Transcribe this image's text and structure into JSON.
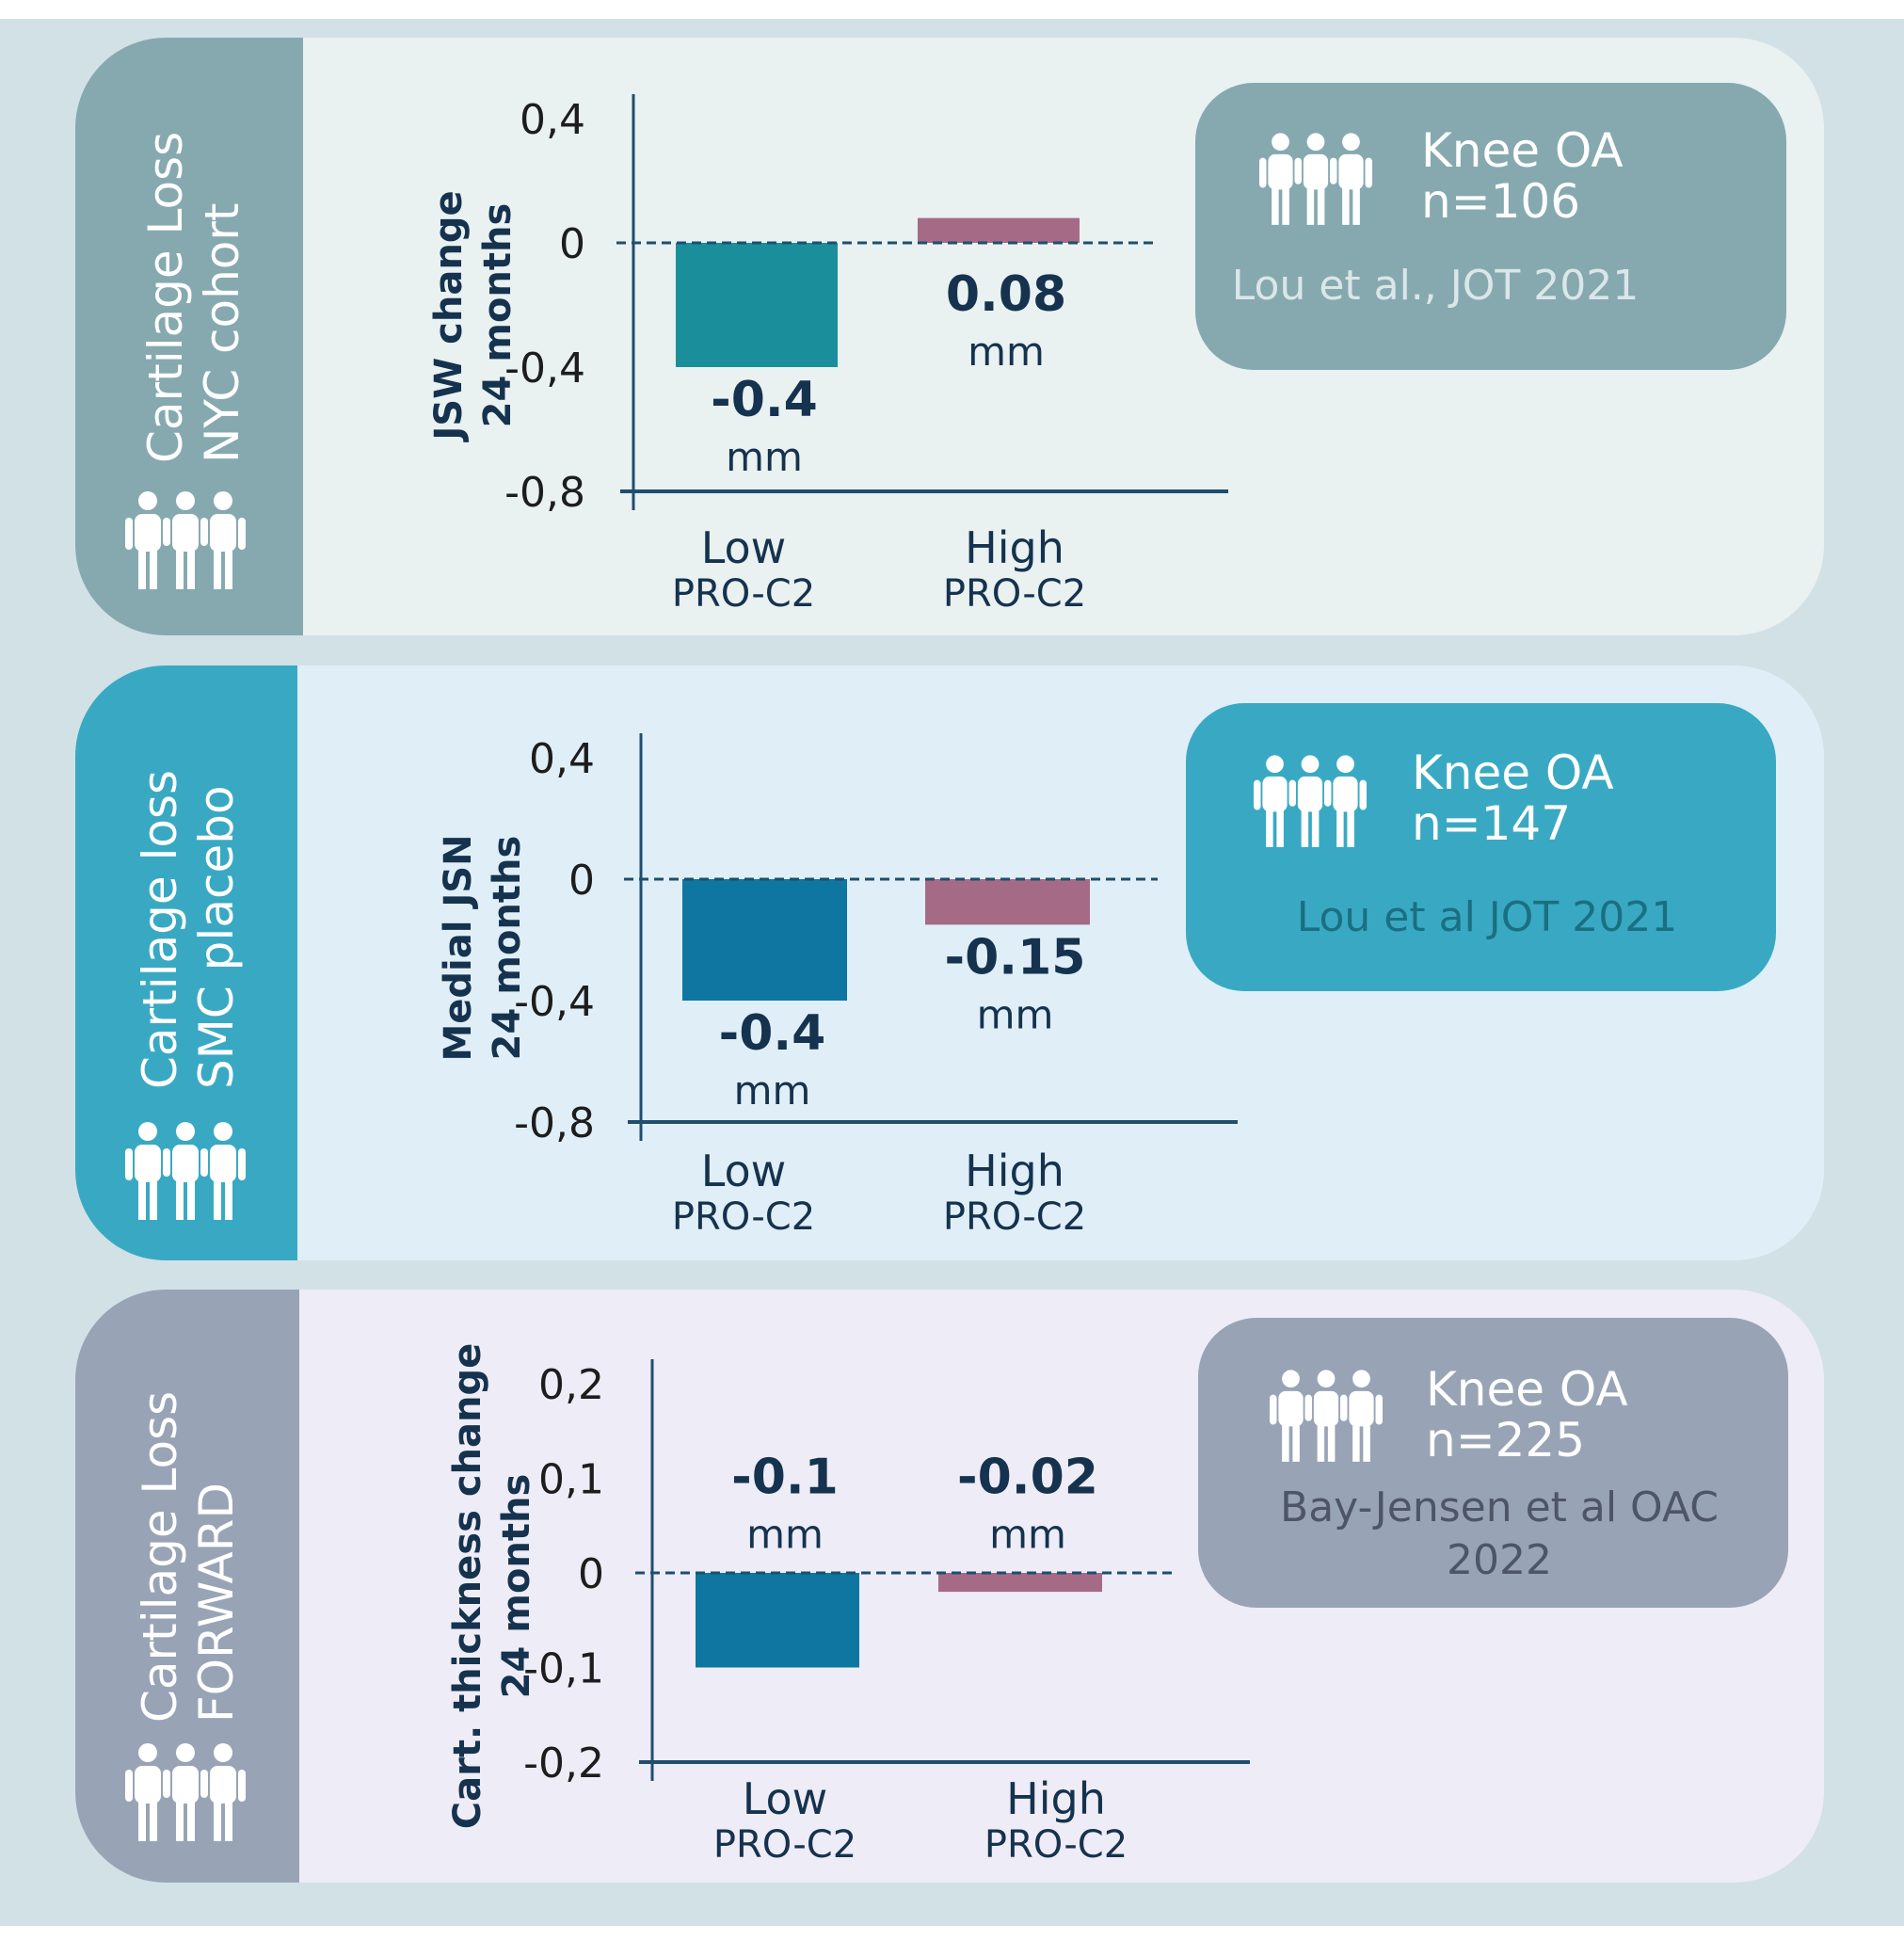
{
  "panels": [
    {
      "band_color": "#86a9b0",
      "bg_color": "#e9f1f1",
      "band_title": [
        "Cartilage Loss",
        "NYC cohort"
      ],
      "infobox": {
        "color": "#86a9b0",
        "ref_color": "#dbe6e8",
        "line1": "Knee OA",
        "line2": "n=106",
        "reference": [
          "Lou et al., JOT 2021"
        ],
        "icon": "people-group-icon"
      }
    },
    {
      "band_color": "#39a9c3",
      "bg_color": "#e0eff7",
      "band_title": [
        "Cartilage loss",
        "SMC placebo"
      ],
      "infobox": {
        "color": "#39a9c3",
        "ref_color": "#1b6f82",
        "line1": "Knee OA",
        "line2": "n=147",
        "reference": [
          "Lou et al JOT 2021"
        ],
        "icon": "people-group-icon"
      }
    },
    {
      "band_color": "#98a4b6",
      "bg_color": "#eeecf6",
      "band_title": [
        "Cartilage Loss",
        "FORWARD"
      ],
      "infobox": {
        "color": "#98a4b6",
        "ref_color": "#4e5566",
        "line1": "Knee OA",
        "line2": "n=225",
        "reference": [
          "Bay-Jensen et al OAC",
          "2022"
        ],
        "icon": "people-group-icon"
      }
    }
  ],
  "chart_data": [
    {
      "type": "bar",
      "ylabel": [
        "JSW change",
        "24 months"
      ],
      "yticks": [
        "0,4",
        "0",
        "-0,4",
        "-0,8"
      ],
      "tick_values": [
        0.4,
        0,
        -0.4,
        -0.8
      ],
      "ylim": [
        -0.8,
        0.4
      ],
      "categories": [
        {
          "line1": "Low",
          "line2": "PRO-C2"
        },
        {
          "line1": "High",
          "line2": "PRO-C2"
        }
      ],
      "values": [
        -0.4,
        0.08
      ],
      "value_labels": [
        "-0.4",
        "0.08"
      ],
      "unit": "mm",
      "bar_colors": [
        "#1a8f9b",
        "#a56b86"
      ],
      "zero_line": "dashed"
    },
    {
      "type": "bar",
      "ylabel": [
        "Medial JSN",
        "24 months"
      ],
      "yticks": [
        "0,4",
        "0",
        "-0,4",
        "-0,8"
      ],
      "tick_values": [
        0.4,
        0,
        -0.4,
        -0.8
      ],
      "ylim": [
        -0.8,
        0.4
      ],
      "categories": [
        {
          "line1": "Low",
          "line2": "PRO-C2"
        },
        {
          "line1": "High",
          "line2": "PRO-C2"
        }
      ],
      "values": [
        -0.4,
        -0.15
      ],
      "value_labels": [
        "-0.4",
        "-0.15"
      ],
      "unit": "mm",
      "bar_colors": [
        "#0e76a0",
        "#a56b86"
      ],
      "zero_line": "dashed"
    },
    {
      "type": "bar",
      "ylabel": [
        "Cart. thickness change",
        "24 months"
      ],
      "yticks": [
        "0,2",
        "0,1",
        "0",
        "-0,1",
        "-0,2"
      ],
      "tick_values": [
        0.2,
        0.1,
        0,
        -0.1,
        -0.2
      ],
      "ylim": [
        -0.2,
        0.2
      ],
      "categories": [
        {
          "line1": "Low",
          "line2": "PRO-C2"
        },
        {
          "line1": "High",
          "line2": "PRO-C2"
        }
      ],
      "values": [
        -0.1,
        -0.02
      ],
      "value_labels": [
        "-0.1",
        "-0.02"
      ],
      "unit": "mm",
      "bar_colors": [
        "#0e76a0",
        "#a56b86"
      ],
      "zero_line": "dashed"
    }
  ]
}
